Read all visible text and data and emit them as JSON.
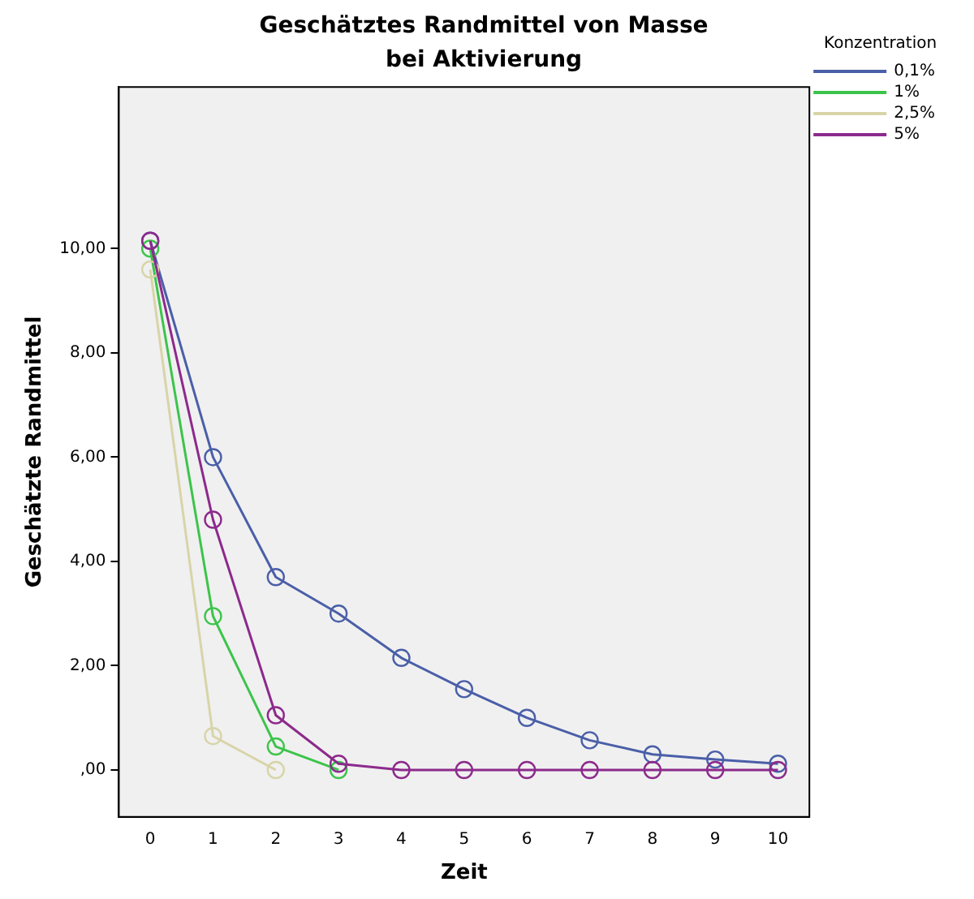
{
  "chart_data": {
    "type": "line",
    "title": "Geschätztes Randmittel von Masse",
    "subtitle": "bei Aktivierung",
    "xlabel": "Zeit",
    "ylabel": "Geschätzte Randmittel",
    "legend_title": "Konzentration",
    "categories": [
      "0",
      "1",
      "2",
      "3",
      "4",
      "5",
      "6",
      "7",
      "8",
      "9",
      "10"
    ],
    "series": [
      {
        "name": "0,1%",
        "color": "#4a5fa8",
        "values": [
          10.15,
          6.0,
          3.7,
          3.0,
          2.15,
          1.55,
          1.0,
          0.57,
          0.3,
          0.2,
          0.12
        ]
      },
      {
        "name": "1%",
        "color": "#3cc44a",
        "values": [
          10.0,
          2.95,
          0.45,
          0,
          null,
          null,
          null,
          null,
          null,
          null,
          null
        ]
      },
      {
        "name": "2,5%",
        "color": "#d8d4a8",
        "values": [
          9.6,
          0.65,
          0,
          null,
          null,
          null,
          null,
          null,
          null,
          null,
          null
        ]
      },
      {
        "name": "5%",
        "color": "#8c2a8c",
        "values": [
          10.15,
          4.8,
          1.05,
          0.12,
          0,
          0,
          0,
          0,
          0,
          0,
          0
        ]
      }
    ],
    "ylim": [
      -0.9,
      13.1
    ],
    "yticks": [
      {
        "value": 0,
        "label": ",00"
      },
      {
        "value": 2,
        "label": "2,00"
      },
      {
        "value": 4,
        "label": "4,00"
      },
      {
        "value": 6,
        "label": "6,00"
      },
      {
        "value": 8,
        "label": "8,00"
      },
      {
        "value": 10,
        "label": "10,00"
      }
    ],
    "grid": false,
    "legend": "top right",
    "marker": "circle",
    "line_style": "solid"
  }
}
